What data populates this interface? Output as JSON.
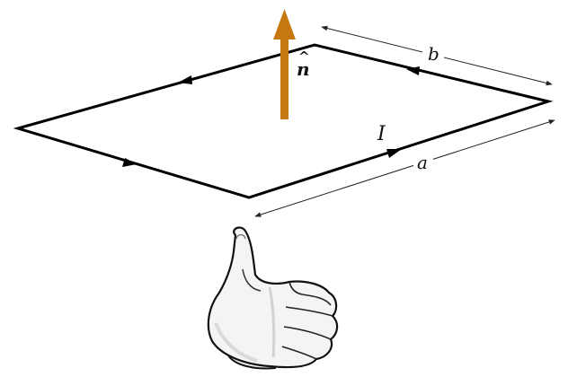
{
  "labels": {
    "normal": "n",
    "normal_hat": "^",
    "current": "I",
    "side_a": "a",
    "side_b": "b"
  },
  "colors": {
    "loop": "#000000",
    "normal_vector": "#C87810",
    "dimension_line": "#222222",
    "hand_fill": "#f4f4f4",
    "hand_stroke": "#111111"
  },
  "icons": {
    "hand": "thumbs-up-hand-icon"
  }
}
